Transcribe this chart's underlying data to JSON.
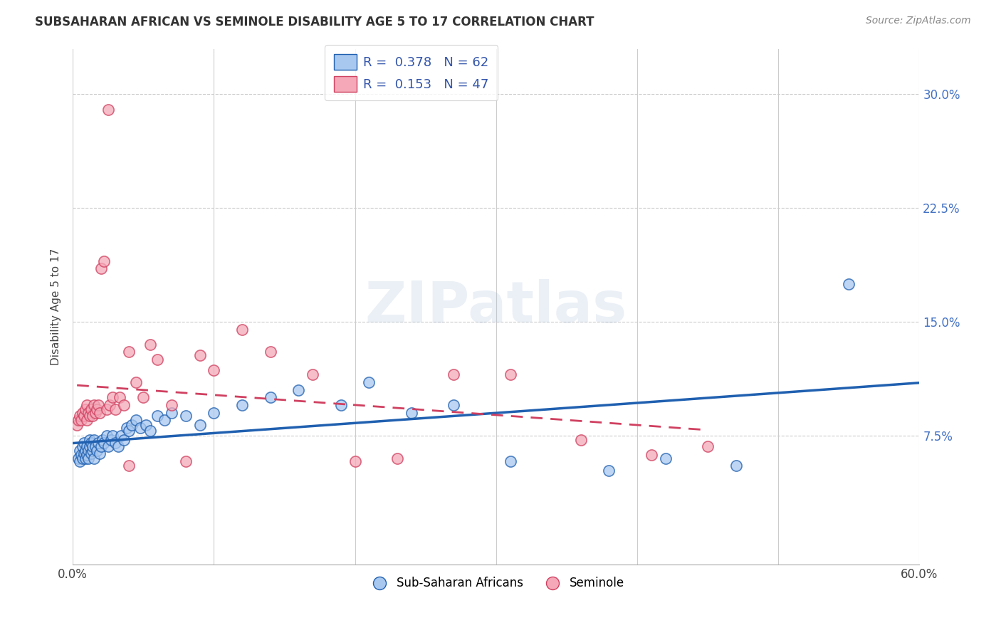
{
  "title": "SUBSAHARAN AFRICAN VS SEMINOLE DISABILITY AGE 5 TO 17 CORRELATION CHART",
  "source": "Source: ZipAtlas.com",
  "ylabel": "Disability Age 5 to 17",
  "yticks": [
    "7.5%",
    "15.0%",
    "22.5%",
    "30.0%"
  ],
  "ytick_vals": [
    0.075,
    0.15,
    0.225,
    0.3
  ],
  "xlim": [
    0.0,
    0.6
  ],
  "ylim": [
    -0.01,
    0.33
  ],
  "legend_r1": "0.378",
  "legend_n1": "62",
  "legend_r2": "0.153",
  "legend_n2": "47",
  "legend_label1": "Sub-Saharan Africans",
  "legend_label2": "Seminole",
  "color_blue": "#A8C8F0",
  "color_pink": "#F4A8B8",
  "color_blue_line": "#2060B0",
  "color_pink_line": "#D04060",
  "watermark": "ZIPatlas",
  "blue_scatter_x": [
    0.004,
    0.005,
    0.005,
    0.006,
    0.007,
    0.007,
    0.008,
    0.008,
    0.009,
    0.009,
    0.01,
    0.01,
    0.011,
    0.011,
    0.012,
    0.012,
    0.013,
    0.013,
    0.014,
    0.014,
    0.015,
    0.015,
    0.016,
    0.017,
    0.018,
    0.019,
    0.02,
    0.021,
    0.022,
    0.024,
    0.025,
    0.027,
    0.028,
    0.03,
    0.032,
    0.034,
    0.036,
    0.038,
    0.04,
    0.042,
    0.045,
    0.048,
    0.052,
    0.055,
    0.06,
    0.065,
    0.07,
    0.08,
    0.09,
    0.1,
    0.12,
    0.14,
    0.16,
    0.19,
    0.21,
    0.24,
    0.27,
    0.31,
    0.38,
    0.42,
    0.47,
    0.55
  ],
  "blue_scatter_y": [
    0.06,
    0.058,
    0.065,
    0.062,
    0.06,
    0.068,
    0.063,
    0.07,
    0.06,
    0.065,
    0.062,
    0.068,
    0.065,
    0.06,
    0.068,
    0.072,
    0.063,
    0.07,
    0.065,
    0.068,
    0.06,
    0.072,
    0.068,
    0.065,
    0.07,
    0.063,
    0.068,
    0.072,
    0.07,
    0.075,
    0.068,
    0.072,
    0.075,
    0.07,
    0.068,
    0.075,
    0.072,
    0.08,
    0.078,
    0.082,
    0.085,
    0.08,
    0.082,
    0.078,
    0.088,
    0.085,
    0.09,
    0.088,
    0.082,
    0.09,
    0.095,
    0.1,
    0.105,
    0.095,
    0.11,
    0.09,
    0.095,
    0.058,
    0.052,
    0.06,
    0.055,
    0.175
  ],
  "pink_scatter_x": [
    0.003,
    0.004,
    0.005,
    0.006,
    0.007,
    0.008,
    0.009,
    0.01,
    0.01,
    0.011,
    0.012,
    0.013,
    0.014,
    0.015,
    0.016,
    0.017,
    0.018,
    0.019,
    0.02,
    0.022,
    0.024,
    0.026,
    0.028,
    0.03,
    0.033,
    0.036,
    0.04,
    0.045,
    0.05,
    0.055,
    0.06,
    0.07,
    0.08,
    0.09,
    0.1,
    0.12,
    0.14,
    0.17,
    0.2,
    0.23,
    0.27,
    0.31,
    0.36,
    0.41,
    0.45,
    0.04,
    0.025
  ],
  "pink_scatter_y": [
    0.082,
    0.085,
    0.088,
    0.085,
    0.09,
    0.088,
    0.092,
    0.085,
    0.095,
    0.09,
    0.088,
    0.092,
    0.088,
    0.095,
    0.09,
    0.092,
    0.095,
    0.09,
    0.185,
    0.19,
    0.092,
    0.095,
    0.1,
    0.092,
    0.1,
    0.095,
    0.13,
    0.11,
    0.1,
    0.135,
    0.125,
    0.095,
    0.058,
    0.128,
    0.118,
    0.145,
    0.13,
    0.115,
    0.058,
    0.06,
    0.115,
    0.115,
    0.072,
    0.062,
    0.068,
    0.055,
    0.29
  ]
}
